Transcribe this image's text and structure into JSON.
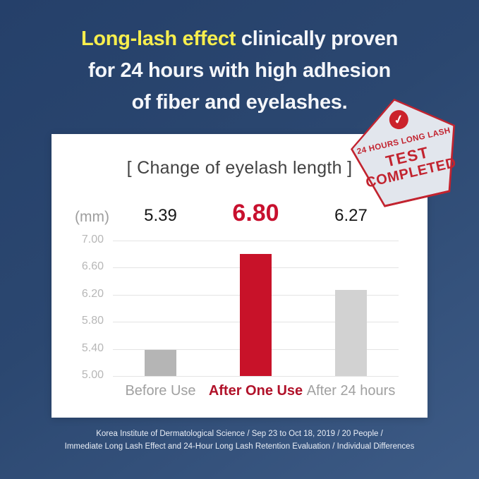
{
  "headline": {
    "highlight": "Long-lash effect",
    "line1_rest": " clinically proven",
    "line2": "for 24 hours with high adhesion",
    "line3": "of fiber and eyelashes."
  },
  "stamp": {
    "check_icon": "✓",
    "line1": "24 HOURS LONG LASH",
    "line2": "TEST",
    "line3": "COMPLETED"
  },
  "chart": {
    "title": "[ Change of eyelash length ]",
    "unit_label": "(mm)"
  },
  "chart_data": {
    "type": "bar",
    "title": "[ Change of eyelash length ]",
    "unit": "mm",
    "categories": [
      "Before Use",
      "After One Use",
      "After 24 hours"
    ],
    "values": [
      5.39,
      6.8,
      6.27
    ],
    "value_labels": [
      "5.39",
      "6.80",
      "6.27"
    ],
    "bar_colors": [
      "#b5b5b5",
      "#c81229",
      "#d2d2d2"
    ],
    "highlight_index": 1,
    "ylim": [
      5.0,
      7.0
    ],
    "ytick_step": 0.4,
    "yticks": [
      "7.00",
      "6.60",
      "6.20",
      "5.80",
      "5.40",
      "5.00"
    ],
    "grid": true,
    "legend": false,
    "ylabel": "(mm)",
    "xlabel": ""
  },
  "footer": {
    "line1": "Korea Institute of Dermatological Science / Sep 23 to Oct 18, 2019 / 20 People /",
    "line2": "Immediate Long Lash Effect and 24-Hour Long Lash Retention Evaluation / Individual Differences"
  },
  "colors": {
    "background_top": "#25406a",
    "background_bottom": "#3d5b86",
    "accent_red": "#c8102e",
    "label_red": "#b1122a",
    "highlight_yellow": "#f7ee4d",
    "bar_gray_dark": "#b5b5b5",
    "bar_gray_light": "#d2d2d2",
    "stamp_red": "#c2232f",
    "stamp_fill": "#e2e6ed",
    "gridline_gray": "#e4e4e4"
  }
}
